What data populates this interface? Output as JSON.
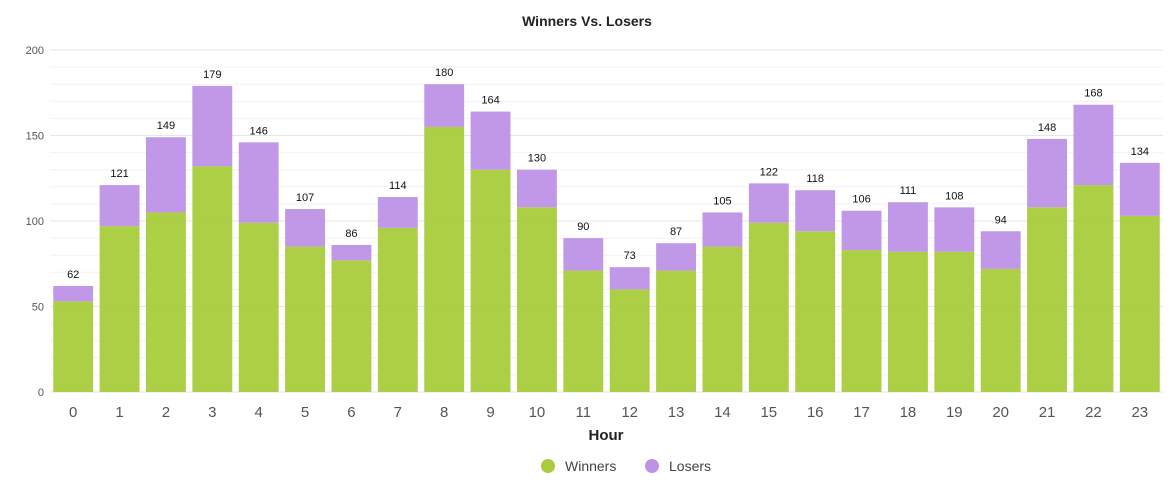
{
  "chart_data": {
    "type": "bar",
    "stacked": true,
    "title": "Winners Vs. Losers",
    "xlabel": "Hour",
    "ylabel": "",
    "ylim": [
      0,
      200
    ],
    "yticks": [
      "0",
      "50",
      "100",
      "150",
      "200"
    ],
    "grid": true,
    "legend_position": "bottom-center",
    "categories": [
      "0",
      "1",
      "2",
      "3",
      "4",
      "5",
      "6",
      "7",
      "8",
      "9",
      "10",
      "11",
      "12",
      "13",
      "14",
      "15",
      "16",
      "17",
      "18",
      "19",
      "20",
      "21",
      "22",
      "23"
    ],
    "series": [
      {
        "name": "Winners",
        "color": "#a8cc3c",
        "values": [
          53,
          97,
          105,
          132,
          99,
          85,
          77,
          96,
          155,
          130,
          108,
          71,
          60,
          71,
          85,
          99,
          94,
          83,
          82,
          82,
          72,
          108,
          121,
          103
        ]
      },
      {
        "name": "Losers",
        "color": "#be92e6",
        "values": [
          9,
          24,
          44,
          47,
          47,
          22,
          9,
          18,
          25,
          34,
          22,
          19,
          13,
          16,
          20,
          23,
          24,
          23,
          29,
          26,
          22,
          40,
          47,
          31
        ]
      }
    ],
    "totals": [
      "62",
      "121",
      "149",
      "179",
      "146",
      "107",
      "86",
      "114",
      "180",
      "164",
      "130",
      "90",
      "73",
      "87",
      "105",
      "122",
      "118",
      "106",
      "111",
      "108",
      "94",
      "148",
      "168",
      "134"
    ]
  }
}
